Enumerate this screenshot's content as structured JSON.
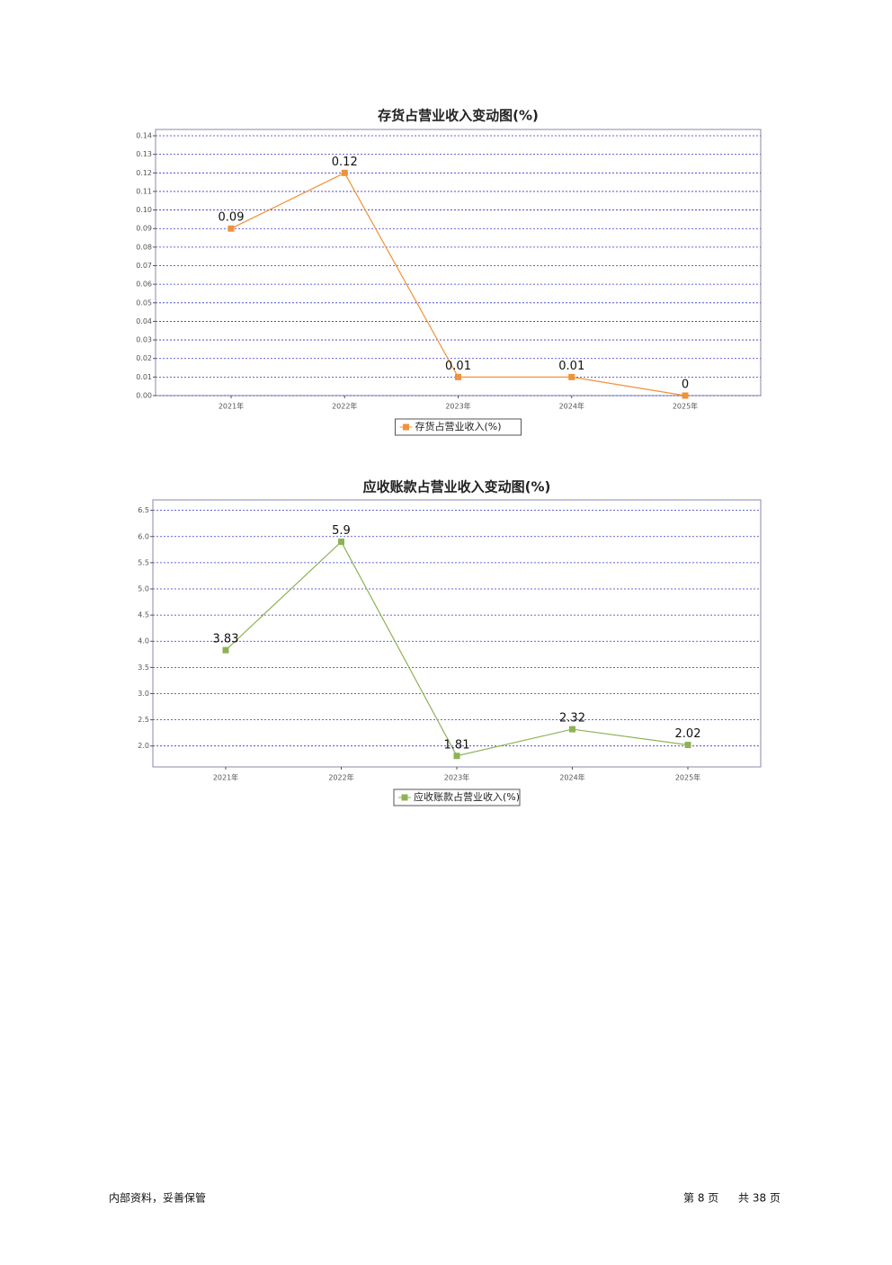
{
  "chart_data": [
    {
      "type": "line",
      "title": "存货占营业收入变动图(%)",
      "categories": [
        "2021年",
        "2022年",
        "2023年",
        "2024年",
        "2025年"
      ],
      "series": [
        {
          "name": "存货占营业收入(%)",
          "color": "#f0923a",
          "values": [
            0.09,
            0.12,
            0.01,
            0.01,
            0
          ]
        }
      ],
      "ylim": [
        0,
        0.1434
      ],
      "yticks": [
        {
          "value": 0,
          "label": "0.00"
        },
        0.01,
        0.02,
        0.03,
        0.04,
        0.05,
        0.06,
        0.07,
        0.08,
        0.09,
        {
          "value": 0.1,
          "label": "0.10"
        },
        0.11,
        0.12,
        0.13,
        0.14
      ],
      "grid": true
    },
    {
      "type": "line",
      "title": "应收账款占营业收入变动图(%)",
      "categories": [
        "2021年",
        "2022年",
        "2023年",
        "2024年",
        "2025年"
      ],
      "series": [
        {
          "name": "应收账款占营业收入(%)",
          "color": "#8db255",
          "values": [
            3.83,
            5.9,
            1.81,
            2.32,
            2.02
          ]
        }
      ],
      "ylim": [
        1.6,
        6.7
      ],
      "yticks": [
        {
          "value": 2,
          "label": "2.0"
        },
        2.5,
        {
          "value": 3,
          "label": "3.0"
        },
        3.5,
        {
          "value": 4,
          "label": "4.0"
        },
        4.5,
        {
          "value": 5,
          "label": "5.0"
        },
        5.5,
        {
          "value": 6,
          "label": "6.0"
        },
        6.5
      ],
      "grid": true
    }
  ],
  "footer": {
    "left": "内部资料，妥善保管",
    "page": "第 8 页",
    "total": "共 38 页"
  }
}
